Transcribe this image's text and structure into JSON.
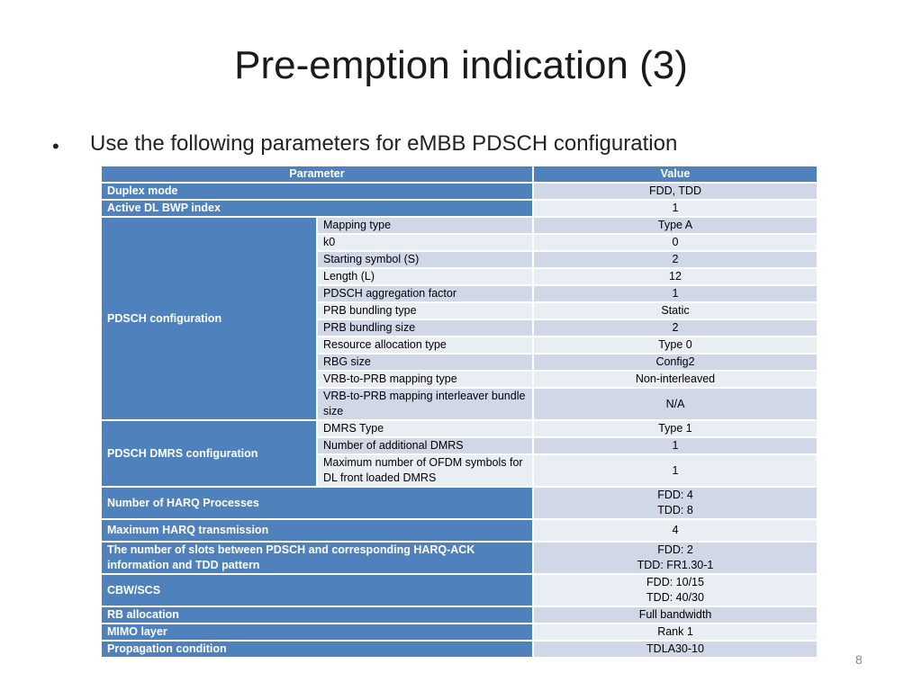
{
  "slide": {
    "title": "Pre-emption indication (3)",
    "bullet": "Use the following parameters for eMBB PDSCH configuration",
    "page_number": "8"
  },
  "table": {
    "header": {
      "parameter": "Parameter",
      "value": "Value"
    },
    "rows": {
      "duplex_mode": {
        "label": "Duplex mode",
        "value": "FDD, TDD"
      },
      "active_bwp": {
        "label": "Active DL BWP index",
        "value": "1"
      },
      "pdsch_config": {
        "label": "PDSCH configuration",
        "items": [
          {
            "label": "Mapping type",
            "value": "Type A"
          },
          {
            "label": "k0",
            "value": "0"
          },
          {
            "label": "Starting symbol (S)",
            "value": "2"
          },
          {
            "label": "Length (L)",
            "value": "12"
          },
          {
            "label": "PDSCH aggregation factor",
            "value": "1"
          },
          {
            "label": "PRB bundling type",
            "value": "Static"
          },
          {
            "label": "PRB bundling size",
            "value": "2"
          },
          {
            "label": "Resource allocation type",
            "value": "Type 0"
          },
          {
            "label": "RBG size",
            "value": "Config2"
          },
          {
            "label": "VRB-to-PRB mapping type",
            "value": "Non-interleaved"
          },
          {
            "label": "VRB-to-PRB mapping interleaver bundle size",
            "value": "N/A"
          }
        ]
      },
      "dmrs_config": {
        "label": "PDSCH DMRS configuration",
        "items": [
          {
            "label": "DMRS Type",
            "value": "Type 1"
          },
          {
            "label": "Number of additional DMRS",
            "value": "1"
          },
          {
            "label": "Maximum number of OFDM symbols for DL front loaded DMRS",
            "value": "1"
          }
        ]
      },
      "harq_processes": {
        "label": "Number of HARQ Processes",
        "value_line1": "FDD: 4",
        "value_line2": "TDD: 8"
      },
      "max_harq_tx": {
        "label": "Maximum HARQ transmission",
        "value": "4"
      },
      "slots_harq_ack": {
        "label": "The number of slots between PDSCH and corresponding HARQ-ACK information and TDD pattern",
        "value_line1": "FDD: 2",
        "value_line2": "TDD: FR1.30-1"
      },
      "cbw_scs": {
        "label": "CBW/SCS",
        "value_line1": "FDD: 10/15",
        "value_line2": "TDD: 40/30"
      },
      "rb_allocation": {
        "label": "RB allocation",
        "value": "Full bandwidth"
      },
      "mimo_layer": {
        "label": "MIMO layer",
        "value": "Rank 1"
      },
      "propagation": {
        "label": "Propagation condition",
        "value": "TDLA30-10"
      }
    }
  },
  "colors": {
    "header_blue": "#4f81bd",
    "row_dark": "#d0d8e8",
    "row_light": "#e9edf4"
  }
}
